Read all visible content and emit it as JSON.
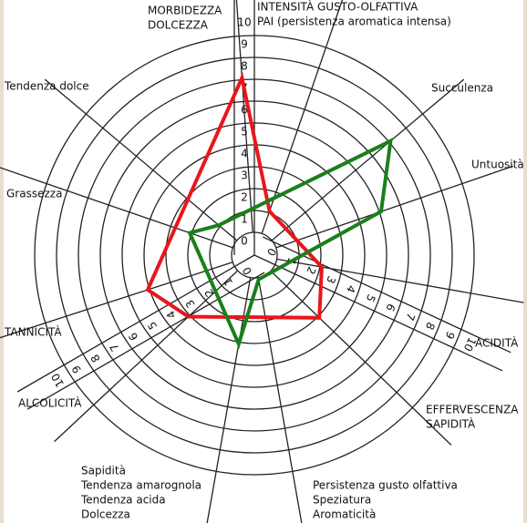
{
  "chart_data": {
    "type": "radar",
    "categories": [
      [
        "MORBIDEZZA",
        "DOLCEZZA"
      ],
      [
        "INTENSITÀ GUSTO-OLFATTIVA",
        "PAI (persistenza aromatica intensa)"
      ],
      [
        "Succulenza"
      ],
      [
        "Untuosità"
      ],
      [
        "ACIDITÀ"
      ],
      [
        "EFFERVESCENZA",
        "SAPIDITÀ"
      ],
      [
        "Persistenza gusto olfattiva",
        "Speziatura",
        "Aromaticità"
      ],
      [
        "Sapidità",
        "Tendenza amarognola",
        "Tendenza acida",
        "Dolcezza"
      ],
      [
        "ALCOLICITÀ"
      ],
      [
        "TANNICITÀ"
      ],
      [
        "Grassezza"
      ],
      [
        "Tendenza dolce"
      ]
    ],
    "series": [
      {
        "color": "#e8161b",
        "values": [
          8,
          2,
          null,
          null,
          3,
          4,
          null,
          null,
          4,
          5,
          null,
          null
        ]
      },
      {
        "color": "#1a7f1a",
        "values": [
          null,
          null,
          8,
          6,
          null,
          null,
          1,
          4,
          null,
          null,
          3,
          2
        ]
      }
    ],
    "rlim": [
      0,
      10
    ],
    "rticks": [
      0,
      1,
      2,
      3,
      4,
      5,
      6,
      7,
      8,
      9,
      10
    ]
  }
}
